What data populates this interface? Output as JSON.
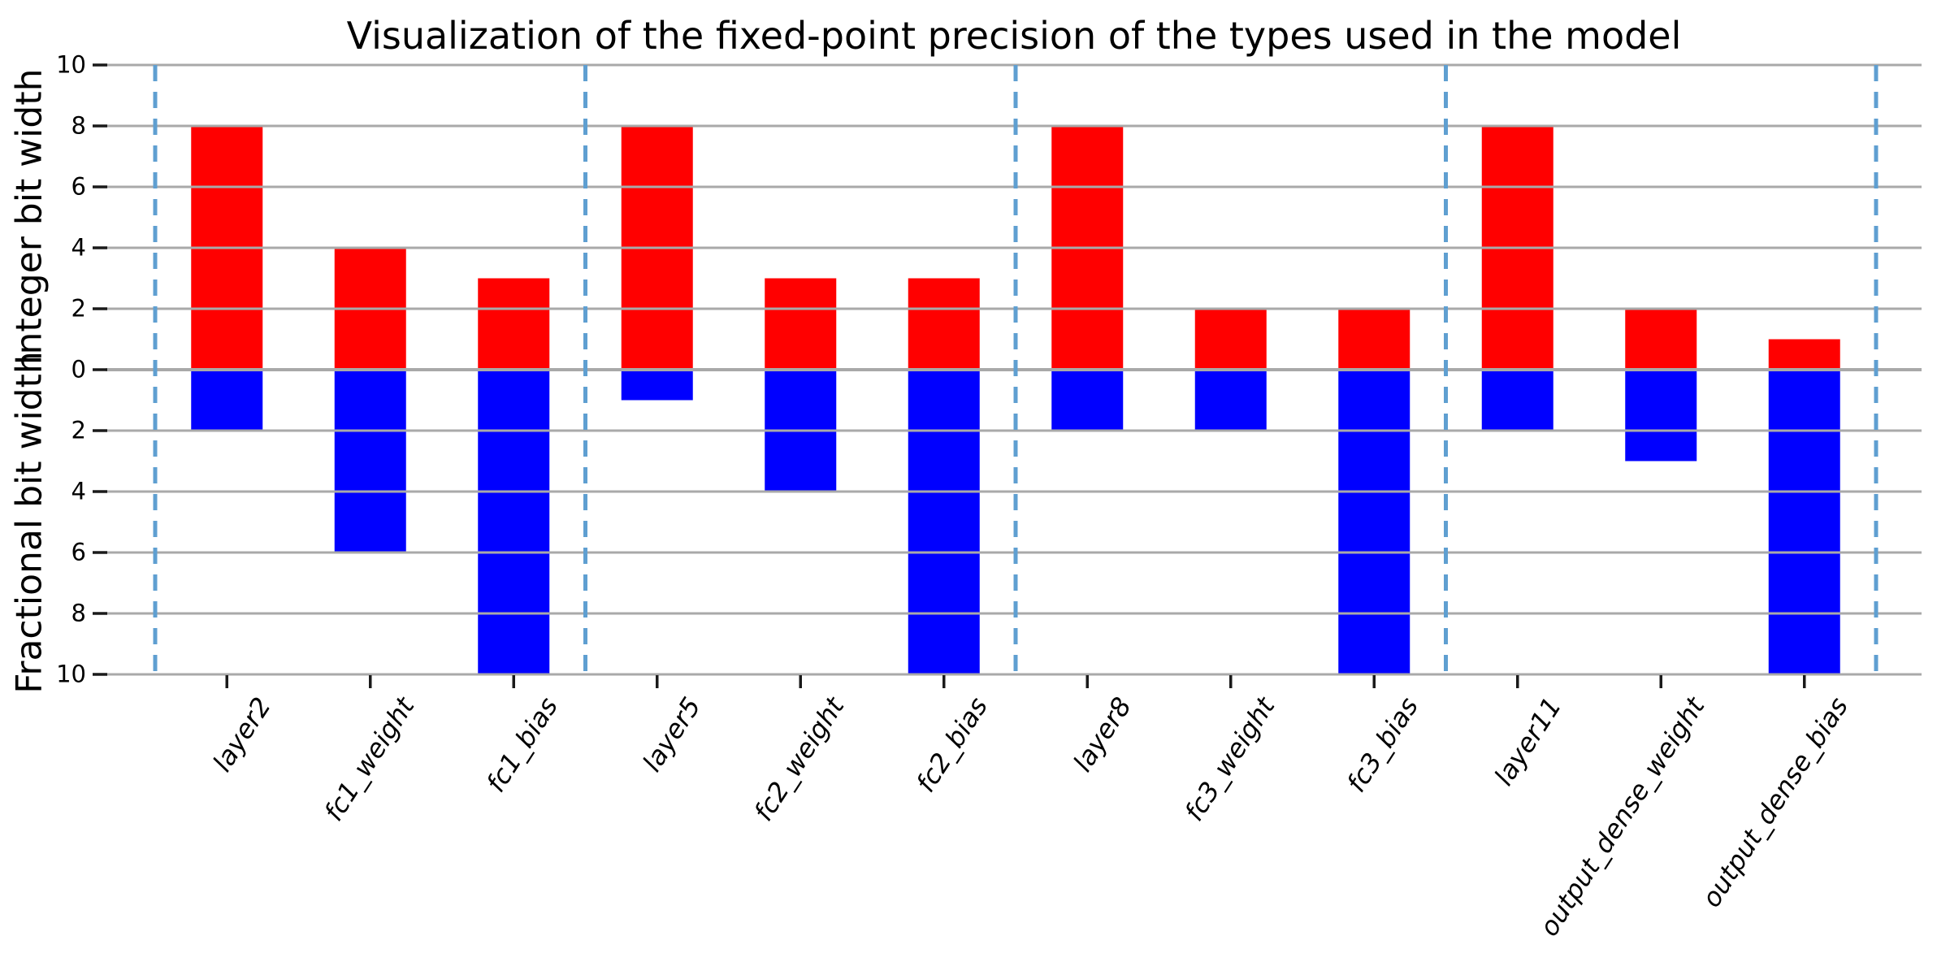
{
  "title": "Visualization of the fixed-point precision of the types used in the model",
  "y_axis_label_top": "Integer bit width",
  "y_axis_label_bottom": "Fractional bit width",
  "chart_data": {
    "type": "bar",
    "title": "Visualization of the fixed-point precision of the types used in the model",
    "categories": [
      "layer2",
      "fc1_weight",
      "fc1_bias",
      "layer5",
      "fc2_weight",
      "fc2_bias",
      "layer8",
      "fc3_weight",
      "fc3_bias",
      "layer11",
      "output_dense_weight",
      "output_dense_bias"
    ],
    "series": [
      {
        "name": "Integer bit width",
        "direction": "up",
        "color": "#ff0000",
        "values": [
          8,
          4,
          3,
          8,
          3,
          3,
          8,
          2,
          2,
          8,
          2,
          1
        ]
      },
      {
        "name": "Fractional bit width",
        "direction": "down",
        "color": "#0000ff",
        "values": [
          2,
          6,
          10,
          1,
          4,
          10,
          2,
          2,
          10,
          2,
          3,
          10
        ]
      }
    ],
    "y_axis": {
      "label_top": "Integer bit width",
      "label_bottom": "Fractional bit width",
      "tick_values": [
        10,
        8,
        6,
        4,
        2,
        0,
        -2,
        -4,
        -6,
        -8,
        -10
      ],
      "tick_labels": [
        "10",
        "8",
        "6",
        "4",
        "2",
        "0",
        "2",
        "4",
        "6",
        "8",
        "10"
      ],
      "ylim": [
        -10,
        10
      ],
      "grid": true
    },
    "group_separators_at": [
      -0.5,
      2.5,
      5.5,
      8.5,
      11.5
    ],
    "colors": {
      "integer_bar": "#ff0000",
      "fractional_bar": "#0000ff",
      "gridline": "#a9a9a9",
      "separator": "#5f9fd1",
      "tick_mark": "#1a1a1a",
      "background": "#ffffff"
    },
    "legend": "none"
  }
}
